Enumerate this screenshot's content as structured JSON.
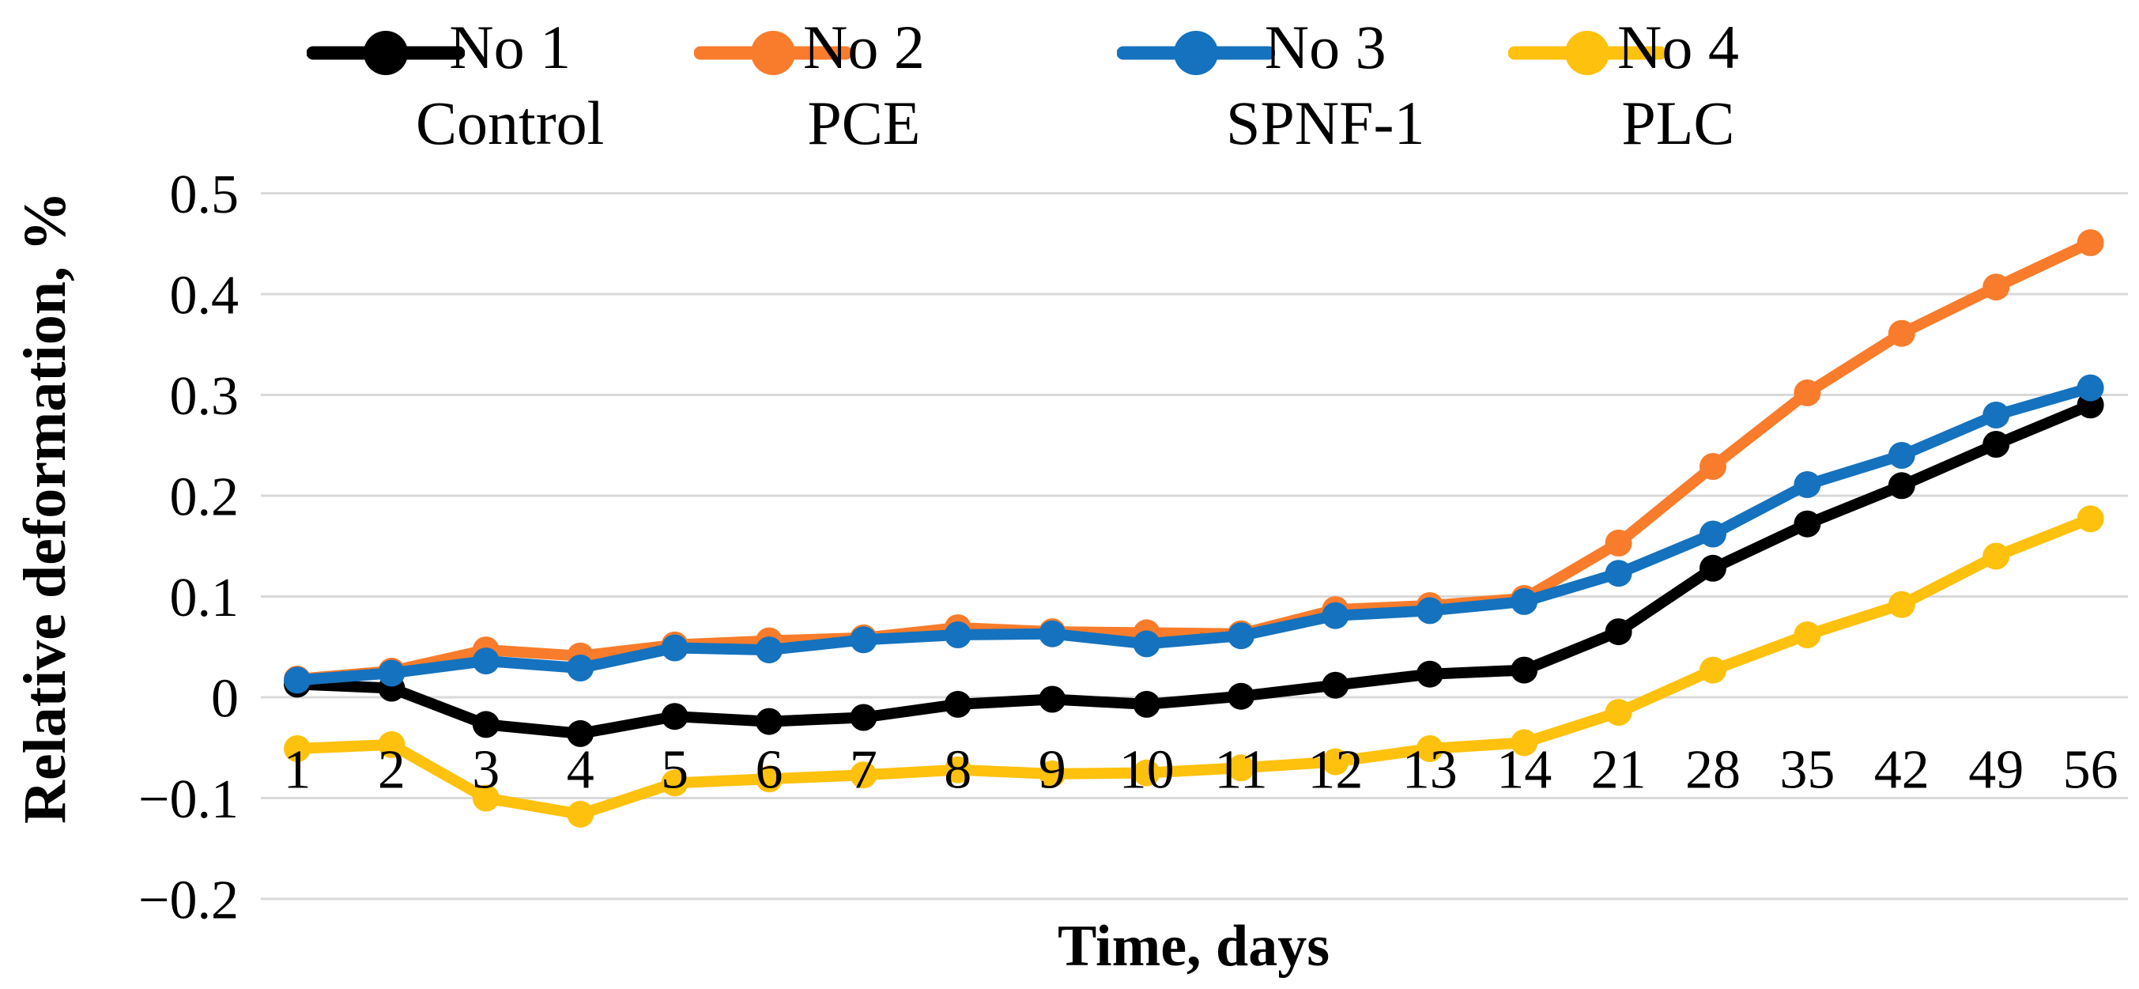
{
  "legend": {
    "entries": [
      {
        "label": "No 1",
        "sublabel": "Control",
        "color": "#000000"
      },
      {
        "label": "No 2",
        "sublabel": "PCE",
        "color": "#F87C2B"
      },
      {
        "label": "No 3",
        "sublabel": "SPNF-1",
        "color": "#1572BE"
      },
      {
        "label": "No 4",
        "sublabel": "PLC",
        "color": "#FEC10D"
      }
    ]
  },
  "y_axis": {
    "title": "Relative deformation, %",
    "ticks": [
      {
        "value": 0.5,
        "label": "0.5"
      },
      {
        "value": 0.4,
        "label": "0.4"
      },
      {
        "value": 0.3,
        "label": "0.3"
      },
      {
        "value": 0.2,
        "label": "0.2"
      },
      {
        "value": 0.1,
        "label": "0.1"
      },
      {
        "value": 0,
        "label": "0"
      },
      {
        "value": -0.1,
        "label": "−0.1"
      },
      {
        "value": -0.2,
        "label": "−0.2"
      }
    ]
  },
  "x_axis": {
    "title": "Time, days"
  },
  "colors": {
    "gridline": "#D9D9D9",
    "text": "#000000"
  },
  "chart_data": {
    "type": "line",
    "title": "",
    "xlabel": "Time, days",
    "ylabel": "Relative deformation, %",
    "ylim": [
      -0.2,
      0.5
    ],
    "grid": "horizontal",
    "legend_position": "top",
    "categories": [
      "1",
      "2",
      "3",
      "4",
      "5",
      "6",
      "7",
      "8",
      "9",
      "10",
      "11",
      "12",
      "13",
      "14",
      "21",
      "28",
      "35",
      "42",
      "49",
      "56"
    ],
    "series": [
      {
        "name": "No 1 Control",
        "color": "#000000",
        "values": [
          0.013,
          0.009,
          -0.027,
          -0.036,
          -0.019,
          -0.024,
          -0.02,
          -0.007,
          -0.002,
          -0.007,
          0.001,
          0.012,
          0.023,
          0.027,
          0.065,
          0.128,
          0.172,
          0.21,
          0.251,
          0.29
        ]
      },
      {
        "name": "No 2 PCE",
        "color": "#F87C2B",
        "values": [
          0.018,
          0.026,
          0.047,
          0.041,
          0.052,
          0.056,
          0.059,
          0.069,
          0.065,
          0.064,
          0.063,
          0.087,
          0.091,
          0.098,
          0.153,
          0.229,
          0.302,
          0.361,
          0.407,
          0.451
        ]
      },
      {
        "name": "No 3 SPNF-1",
        "color": "#1572BE",
        "values": [
          0.017,
          0.024,
          0.036,
          0.029,
          0.049,
          0.047,
          0.057,
          0.062,
          0.063,
          0.053,
          0.061,
          0.081,
          0.086,
          0.095,
          0.123,
          0.162,
          0.211,
          0.24,
          0.28,
          0.307
        ]
      },
      {
        "name": "No 4 PLC",
        "color": "#FEC10D",
        "values": [
          -0.051,
          -0.047,
          -0.1,
          -0.116,
          -0.085,
          -0.081,
          -0.077,
          -0.072,
          -0.076,
          -0.075,
          -0.07,
          -0.064,
          -0.051,
          -0.045,
          -0.015,
          0.027,
          0.062,
          0.092,
          0.14,
          0.177
        ]
      }
    ]
  }
}
